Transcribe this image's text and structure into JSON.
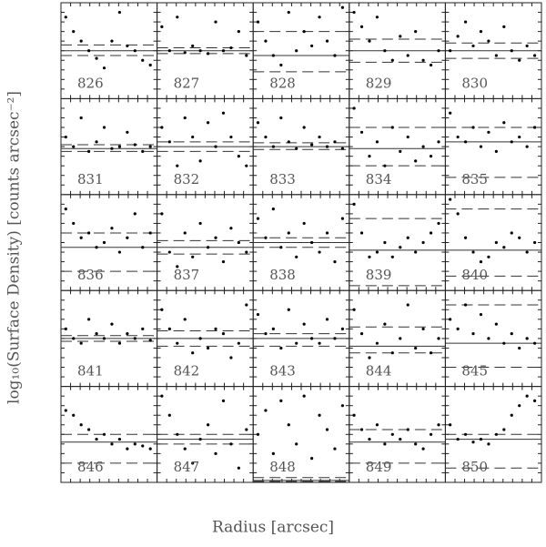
{
  "chart_data": {
    "type": "scatter",
    "xlabel": "Radius [arcsec]",
    "ylabel": "log₁₀(Surface Density) [counts arcsec⁻²]",
    "xlim": [
      0,
      1
    ],
    "ylim": [
      0,
      1
    ],
    "x": [
      0.05,
      0.13,
      0.21,
      0.29,
      0.37,
      0.45,
      0.53,
      0.61,
      0.69,
      0.77,
      0.85,
      0.93
    ],
    "panels": [
      {
        "label": "826",
        "y": [
          0.85,
          0.7,
          0.6,
          0.5,
          0.42,
          0.32,
          0.6,
          0.9,
          0.55,
          0.5,
          0.4,
          0.35
        ],
        "solid": 0.5,
        "dashed": [
          0.56,
          0.45
        ]
      },
      {
        "label": "827",
        "y": [
          0.75,
          0.5,
          0.85,
          0.48,
          0.55,
          0.5,
          0.47,
          0.8,
          0.5,
          0.53,
          0.7,
          0.45
        ],
        "solid": 0.5,
        "dashed": [
          0.53,
          0.47
        ]
      },
      {
        "label": "828",
        "y": [
          0.8,
          0.6,
          0.45,
          0.35,
          0.9,
          0.5,
          0.7,
          0.55,
          0.85,
          0.6,
          0.45,
          0.95
        ],
        "solid": 0.45,
        "dashed": [
          0.7,
          0.28
        ]
      },
      {
        "label": "829",
        "y": [
          0.9,
          0.75,
          0.6,
          0.85,
          0.5,
          0.4,
          0.65,
          0.45,
          0.7,
          0.4,
          0.35,
          0.5
        ],
        "solid": 0.5,
        "dashed": [
          0.62,
          0.38
        ]
      },
      {
        "label": "830",
        "y": [
          0.5,
          0.65,
          0.8,
          0.55,
          0.7,
          0.6,
          0.45,
          0.75,
          0.5,
          0.4,
          0.55,
          0.45
        ],
        "solid": 0.5,
        "dashed": [
          0.58,
          0.42
        ]
      },
      {
        "label": "831",
        "y": [
          0.6,
          0.5,
          0.8,
          0.45,
          0.55,
          0.7,
          0.48,
          0.5,
          0.65,
          0.52,
          0.45,
          0.5
        ],
        "solid": 0.48,
        "dashed": [
          0.52,
          0.45
        ]
      },
      {
        "label": "832",
        "y": [
          0.7,
          0.55,
          0.3,
          0.8,
          0.6,
          0.35,
          0.75,
          0.5,
          0.85,
          0.6,
          0.4,
          0.3
        ],
        "solid": 0.5,
        "dashed": [
          0.55,
          0.45
        ]
      },
      {
        "label": "833",
        "y": [
          0.75,
          0.6,
          0.5,
          0.8,
          0.55,
          0.48,
          0.7,
          0.52,
          0.6,
          0.5,
          0.55,
          0.48
        ],
        "solid": 0.5,
        "dashed": [
          0.54,
          0.47
        ]
      },
      {
        "label": "834",
        "y": [
          0.9,
          0.65,
          0.4,
          0.55,
          0.3,
          0.7,
          0.45,
          0.6,
          0.35,
          0.5,
          0.4,
          0.55
        ],
        "solid": 0.48,
        "dashed": [
          0.7,
          0.3
        ]
      },
      {
        "label": "835",
        "y": [
          0.85,
          0.6,
          0.55,
          0.7,
          0.5,
          0.65,
          0.45,
          0.75,
          0.55,
          0.6,
          0.5,
          0.7
        ],
        "solid": 0.55,
        "dashed": [
          0.7,
          0.18
        ]
      },
      {
        "label": "836",
        "y": [
          0.85,
          0.7,
          0.55,
          0.6,
          0.45,
          0.5,
          0.65,
          0.4,
          0.55,
          0.8,
          0.45,
          0.6
        ],
        "solid": 0.45,
        "dashed": [
          0.6,
          0.2
        ]
      },
      {
        "label": "837",
        "y": [
          0.8,
          0.4,
          0.25,
          0.6,
          0.35,
          0.7,
          0.45,
          0.55,
          0.3,
          0.65,
          0.5,
          0.4
        ],
        "solid": 0.45,
        "dashed": [
          0.52,
          0.38
        ]
      },
      {
        "label": "838",
        "y": [
          0.75,
          0.55,
          0.85,
          0.45,
          0.6,
          0.35,
          0.7,
          0.5,
          0.4,
          0.6,
          0.3,
          0.75
        ],
        "solid": 0.5,
        "dashed": [
          0.55,
          0.45
        ]
      },
      {
        "label": "839",
        "y": [
          0.9,
          0.6,
          0.35,
          0.4,
          0.5,
          0.35,
          0.45,
          0.55,
          0.4,
          0.5,
          0.6,
          0.7
        ],
        "solid": 0.42,
        "dashed": [
          0.75,
          0.05
        ]
      },
      {
        "label": "840",
        "y": [
          0.95,
          0.8,
          0.55,
          0.4,
          0.3,
          0.35,
          0.5,
          0.45,
          0.6,
          0.55,
          0.4,
          0.5
        ],
        "solid": 0.42,
        "dashed": [
          0.85,
          0.15
        ]
      },
      {
        "label": "841",
        "y": [
          0.6,
          0.5,
          0.45,
          0.7,
          0.55,
          0.5,
          0.65,
          0.45,
          0.55,
          0.5,
          0.6,
          0.48
        ],
        "solid": 0.5,
        "dashed": [
          0.53,
          0.47
        ]
      },
      {
        "label": "842",
        "y": [
          0.8,
          0.6,
          0.45,
          0.7,
          0.35,
          0.5,
          0.4,
          0.6,
          0.55,
          0.3,
          0.45,
          0.85
        ],
        "solid": 0.5,
        "dashed": [
          0.58,
          0.42
        ]
      },
      {
        "label": "843",
        "y": [
          0.75,
          0.55,
          0.6,
          0.4,
          0.8,
          0.45,
          0.65,
          0.5,
          0.45,
          0.7,
          0.5,
          0.6
        ],
        "solid": 0.5,
        "dashed": [
          0.55,
          0.42
        ]
      },
      {
        "label": "844",
        "y": [
          0.8,
          0.55,
          0.3,
          0.45,
          0.65,
          0.35,
          0.5,
          0.85,
          0.4,
          0.6,
          0.35,
          0.5
        ],
        "solid": 0.42,
        "dashed": [
          0.62,
          0.35
        ]
      },
      {
        "label": "845",
        "y": [
          0.7,
          0.6,
          0.85,
          0.55,
          0.75,
          0.5,
          0.65,
          0.45,
          0.55,
          0.4,
          0.5,
          0.45
        ],
        "solid": 0.45,
        "dashed": [
          0.85,
          0.2
        ]
      },
      {
        "label": "846",
        "y": [
          0.75,
          0.7,
          0.6,
          0.55,
          0.45,
          0.5,
          0.4,
          0.45,
          0.35,
          0.4,
          0.38,
          0.35
        ],
        "solid": 0.42,
        "dashed": [
          0.5,
          0.2
        ]
      },
      {
        "label": "847",
        "y": [
          0.9,
          0.7,
          0.5,
          0.35,
          0.2,
          0.45,
          0.6,
          0.3,
          0.85,
          0.4,
          0.15,
          0.55
        ],
        "solid": 0.45,
        "dashed": [
          0.5,
          0.4
        ]
      },
      {
        "label": "848",
        "y": [
          0.5,
          0.75,
          0.3,
          0.85,
          0.6,
          0.4,
          0.9,
          0.25,
          0.7,
          0.55,
          0.35,
          0.8
        ],
        "solid": 0.02,
        "dashed": [
          0.05,
          0.01
        ]
      },
      {
        "label": "849",
        "y": [
          0.7,
          0.55,
          0.45,
          0.6,
          0.4,
          0.5,
          0.45,
          0.55,
          0.4,
          0.35,
          0.5,
          0.6
        ],
        "solid": 0.42,
        "dashed": [
          0.55,
          0.2
        ]
      },
      {
        "label": "850",
        "y": [
          0.6,
          0.45,
          0.5,
          0.42,
          0.45,
          0.4,
          0.5,
          0.55,
          0.7,
          0.8,
          0.9,
          0.85
        ],
        "solid": 0.45,
        "dashed": [
          0.5,
          0.15
        ]
      }
    ]
  }
}
